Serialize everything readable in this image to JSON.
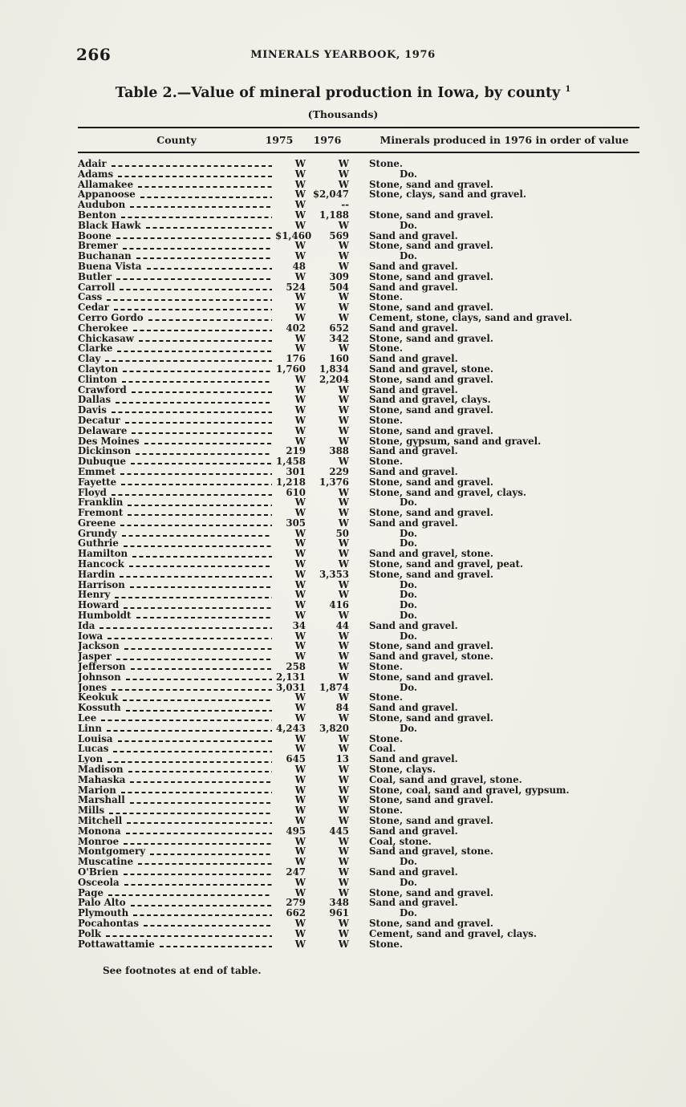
{
  "page": {
    "number": "266",
    "running_head": "MINERALS YEARBOOK, 1976"
  },
  "table": {
    "title": "Table 2.—Value of mineral production in Iowa, by county",
    "title_footnote_ref": "1",
    "subtitle": "(Thousands)",
    "columns": [
      "County",
      "1975",
      "1976",
      "Minerals produced in 1976 in order of value"
    ],
    "rows": [
      {
        "county": "Adair",
        "v1975": "W",
        "v1976": "W",
        "minerals": "Stone."
      },
      {
        "county": "Adams",
        "v1975": "W",
        "v1976": "W",
        "minerals": "Do."
      },
      {
        "county": "Allamakee",
        "v1975": "W",
        "v1976": "W",
        "minerals": "Stone, sand and gravel."
      },
      {
        "county": "Appanoose",
        "v1975": "W",
        "v1976": "$2,047",
        "minerals": "Stone, clays, sand and gravel."
      },
      {
        "county": "Audubon",
        "v1975": "W",
        "v1976": "--",
        "minerals": ""
      },
      {
        "county": "Benton",
        "v1975": "W",
        "v1976": "1,188",
        "minerals": "Stone, sand and gravel."
      },
      {
        "county": "Black Hawk",
        "v1975": "W",
        "v1976": "W",
        "minerals": "Do."
      },
      {
        "county": "Boone",
        "v1975": "$1,460",
        "v1976": "569",
        "minerals": "Sand and gravel."
      },
      {
        "county": "Bremer",
        "v1975": "W",
        "v1976": "W",
        "minerals": "Stone, sand and gravel."
      },
      {
        "county": "Buchanan",
        "v1975": "W",
        "v1976": "W",
        "minerals": "Do."
      },
      {
        "county": "Buena Vista",
        "v1975": "48",
        "v1976": "W",
        "minerals": "Sand and gravel."
      },
      {
        "county": "Butler",
        "v1975": "W",
        "v1976": "309",
        "minerals": "Stone, sand and gravel."
      },
      {
        "county": "Carroll",
        "v1975": "524",
        "v1976": "504",
        "minerals": "Sand and gravel."
      },
      {
        "county": "Cass",
        "v1975": "W",
        "v1976": "W",
        "minerals": "Stone."
      },
      {
        "county": "Cedar",
        "v1975": "W",
        "v1976": "W",
        "minerals": "Stone, sand and gravel."
      },
      {
        "county": "Cerro Gordo",
        "v1975": "W",
        "v1976": "W",
        "minerals": "Cement, stone, clays, sand and gravel."
      },
      {
        "county": "Cherokee",
        "v1975": "402",
        "v1976": "652",
        "minerals": "Sand and gravel."
      },
      {
        "county": "Chickasaw",
        "v1975": "W",
        "v1976": "342",
        "minerals": "Stone, sand and gravel."
      },
      {
        "county": "Clarke",
        "v1975": "W",
        "v1976": "W",
        "minerals": "Stone."
      },
      {
        "county": "Clay",
        "v1975": "176",
        "v1976": "160",
        "minerals": "Sand and gravel."
      },
      {
        "county": "Clayton",
        "v1975": "1,760",
        "v1976": "1,834",
        "minerals": "Sand and gravel, stone."
      },
      {
        "county": "Clinton",
        "v1975": "W",
        "v1976": "2,204",
        "minerals": "Stone, sand and gravel."
      },
      {
        "county": "Crawford",
        "v1975": "W",
        "v1976": "W",
        "minerals": "Sand and gravel."
      },
      {
        "county": "Dallas",
        "v1975": "W",
        "v1976": "W",
        "minerals": "Sand and gravel, clays."
      },
      {
        "county": "Davis",
        "v1975": "W",
        "v1976": "W",
        "minerals": "Stone, sand and gravel."
      },
      {
        "county": "Decatur",
        "v1975": "W",
        "v1976": "W",
        "minerals": "Stone."
      },
      {
        "county": "Delaware",
        "v1975": "W",
        "v1976": "W",
        "minerals": "Stone, sand and gravel."
      },
      {
        "county": "Des Moines",
        "v1975": "W",
        "v1976": "W",
        "minerals": "Stone, gypsum, sand and gravel."
      },
      {
        "county": "Dickinson",
        "v1975": "219",
        "v1976": "388",
        "minerals": "Sand and gravel."
      },
      {
        "county": "Dubuque",
        "v1975": "1,458",
        "v1976": "W",
        "minerals": "Stone."
      },
      {
        "county": "Emmet",
        "v1975": "301",
        "v1976": "229",
        "minerals": "Sand and gravel."
      },
      {
        "county": "Fayette",
        "v1975": "1,218",
        "v1976": "1,376",
        "minerals": "Stone, sand and gravel."
      },
      {
        "county": "Floyd",
        "v1975": "610",
        "v1976": "W",
        "minerals": "Stone, sand and gravel, clays."
      },
      {
        "county": "Franklin",
        "v1975": "W",
        "v1976": "W",
        "minerals": "Do."
      },
      {
        "county": "Fremont",
        "v1975": "W",
        "v1976": "W",
        "minerals": "Stone, sand and gravel."
      },
      {
        "county": "Greene",
        "v1975": "305",
        "v1976": "W",
        "minerals": "Sand and gravel."
      },
      {
        "county": "Grundy",
        "v1975": "W",
        "v1976": "50",
        "minerals": "Do."
      },
      {
        "county": "Guthrie",
        "v1975": "W",
        "v1976": "W",
        "minerals": "Do."
      },
      {
        "county": "Hamilton",
        "v1975": "W",
        "v1976": "W",
        "minerals": "Sand and gravel, stone."
      },
      {
        "county": "Hancock",
        "v1975": "W",
        "v1976": "W",
        "minerals": "Stone, sand and gravel, peat."
      },
      {
        "county": "Hardin",
        "v1975": "W",
        "v1976": "3,353",
        "minerals": "Stone, sand and gravel."
      },
      {
        "county": "Harrison",
        "v1975": "W",
        "v1976": "W",
        "minerals": "Do."
      },
      {
        "county": "Henry",
        "v1975": "W",
        "v1976": "W",
        "minerals": "Do."
      },
      {
        "county": "Howard",
        "v1975": "W",
        "v1976": "416",
        "minerals": "Do."
      },
      {
        "county": "Humboldt",
        "v1975": "W",
        "v1976": "W",
        "minerals": "Do."
      },
      {
        "county": "Ida",
        "v1975": "34",
        "v1976": "44",
        "minerals": "Sand and gravel."
      },
      {
        "county": "Iowa",
        "v1975": "W",
        "v1976": "W",
        "minerals": "Do."
      },
      {
        "county": "Jackson",
        "v1975": "W",
        "v1976": "W",
        "minerals": "Stone, sand and gravel."
      },
      {
        "county": "Jasper",
        "v1975": "W",
        "v1976": "W",
        "minerals": "Sand and gravel, stone."
      },
      {
        "county": "Jefferson",
        "v1975": "258",
        "v1976": "W",
        "minerals": "Stone."
      },
      {
        "county": "Johnson",
        "v1975": "2,131",
        "v1976": "W",
        "minerals": "Stone, sand and gravel."
      },
      {
        "county": "Jones",
        "v1975": "3,031",
        "v1976": "1,874",
        "minerals": "Do."
      },
      {
        "county": "Keokuk",
        "v1975": "W",
        "v1976": "W",
        "minerals": "Stone."
      },
      {
        "county": "Kossuth",
        "v1975": "W",
        "v1976": "84",
        "minerals": "Sand and gravel."
      },
      {
        "county": "Lee",
        "v1975": "W",
        "v1976": "W",
        "minerals": "Stone, sand and gravel."
      },
      {
        "county": "Linn",
        "v1975": "4,243",
        "v1976": "3,820",
        "minerals": "Do."
      },
      {
        "county": "Louisa",
        "v1975": "W",
        "v1976": "W",
        "minerals": "Stone."
      },
      {
        "county": "Lucas",
        "v1975": "W",
        "v1976": "W",
        "minerals": "Coal."
      },
      {
        "county": "Lyon",
        "v1975": "645",
        "v1976": "13",
        "minerals": "Sand and gravel."
      },
      {
        "county": "Madison",
        "v1975": "W",
        "v1976": "W",
        "minerals": "Stone, clays."
      },
      {
        "county": "Mahaska",
        "v1975": "W",
        "v1976": "W",
        "minerals": "Coal, sand and gravel, stone."
      },
      {
        "county": "Marion",
        "v1975": "W",
        "v1976": "W",
        "minerals": "Stone, coal, sand and gravel, gypsum."
      },
      {
        "county": "Marshall",
        "v1975": "W",
        "v1976": "W",
        "minerals": "Stone, sand and gravel."
      },
      {
        "county": "Mills",
        "v1975": "W",
        "v1976": "W",
        "minerals": "Stone."
      },
      {
        "county": "Mitchell",
        "v1975": "W",
        "v1976": "W",
        "minerals": "Stone, sand and gravel."
      },
      {
        "county": "Monona",
        "v1975": "495",
        "v1976": "445",
        "minerals": "Sand and gravel."
      },
      {
        "county": "Monroe",
        "v1975": "W",
        "v1976": "W",
        "minerals": "Coal, stone."
      },
      {
        "county": "Montgomery",
        "v1975": "W",
        "v1976": "W",
        "minerals": "Sand and gravel, stone."
      },
      {
        "county": "Muscatine",
        "v1975": "W",
        "v1976": "W",
        "minerals": "Do."
      },
      {
        "county": "O'Brien",
        "v1975": "247",
        "v1976": "W",
        "minerals": "Sand and gravel."
      },
      {
        "county": "Osceola",
        "v1975": "W",
        "v1976": "W",
        "minerals": "Do."
      },
      {
        "county": "Page",
        "v1975": "W",
        "v1976": "W",
        "minerals": "Stone, sand and gravel."
      },
      {
        "county": "Palo Alto",
        "v1975": "279",
        "v1976": "348",
        "minerals": "Sand and gravel."
      },
      {
        "county": "Plymouth",
        "v1975": "662",
        "v1976": "961",
        "minerals": "Do."
      },
      {
        "county": "Pocahontas",
        "v1975": "W",
        "v1976": "W",
        "minerals": "Stone, sand and gravel."
      },
      {
        "county": "Polk",
        "v1975": "W",
        "v1976": "W",
        "minerals": "Cement, sand and gravel, clays."
      },
      {
        "county": "Pottawattamie",
        "v1975": "W",
        "v1976": "W",
        "minerals": "Stone."
      }
    ],
    "footnote": "See footnotes at end of table."
  }
}
